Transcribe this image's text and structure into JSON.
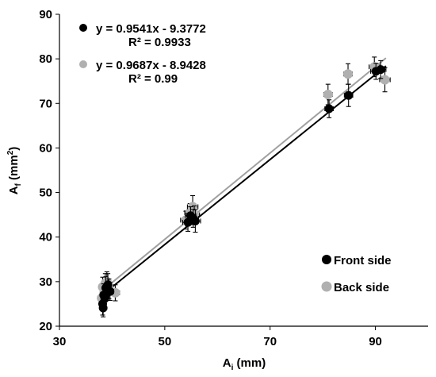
{
  "chart_data": {
    "type": "scatter",
    "xlabel": {
      "main": "A",
      "sub": "i",
      "rest": " (mm)"
    },
    "ylabel": {
      "main": "A",
      "sub": "f",
      "rest": " (mm",
      "sup": "2",
      "end": ")"
    },
    "xlim": [
      30,
      100
    ],
    "ylim": [
      20,
      90
    ],
    "xticks": [
      30,
      50,
      70,
      90
    ],
    "yticks": [
      20,
      30,
      40,
      50,
      60,
      70,
      80,
      90
    ],
    "legend_position": "bottom-right",
    "series": [
      {
        "name": "Front side",
        "color": "#000000",
        "equation": "y = 0.9541x - 9.3772",
        "r2": "R² = 0.9933",
        "slope": 0.9541,
        "intercept": -9.3772,
        "fit_range": [
          38,
          92
        ],
        "points": [
          {
            "x": 38.2,
            "y": 25.0,
            "xerr": 0.6,
            "yerr": 2.5
          },
          {
            "x": 38.4,
            "y": 27.0,
            "xerr": 0.6,
            "yerr": 2.5
          },
          {
            "x": 38.6,
            "y": 26.2,
            "xerr": 0.6,
            "yerr": 2.5
          },
          {
            "x": 38.8,
            "y": 28.6,
            "xerr": 0.6,
            "yerr": 2.5
          },
          {
            "x": 39.2,
            "y": 29.3,
            "xerr": 0.6,
            "yerr": 2.5
          },
          {
            "x": 38.3,
            "y": 24.1,
            "xerr": 0.6,
            "yerr": 2.0
          },
          {
            "x": 39.6,
            "y": 27.8,
            "xerr": 0.7,
            "yerr": 2.0
          },
          {
            "x": 54.4,
            "y": 43.3,
            "xerr": 1.0,
            "yerr": 2.0
          },
          {
            "x": 54.9,
            "y": 44.8,
            "xerr": 1.0,
            "yerr": 2.0
          },
          {
            "x": 55.4,
            "y": 44.2,
            "xerr": 1.0,
            "yerr": 2.0
          },
          {
            "x": 55.8,
            "y": 43.6,
            "xerr": 1.0,
            "yerr": 2.5
          },
          {
            "x": 81.2,
            "y": 68.8,
            "xerr": 0.8,
            "yerr": 2.0
          },
          {
            "x": 84.9,
            "y": 71.8,
            "xerr": 0.8,
            "yerr": 2.5
          },
          {
            "x": 90.1,
            "y": 77.2,
            "xerr": 1.0,
            "yerr": 1.8
          },
          {
            "x": 91.0,
            "y": 77.6,
            "xerr": 1.0,
            "yerr": 2.0
          }
        ]
      },
      {
        "name": "Back side",
        "color": "#b0b0b0",
        "equation": "y = 0.9687x - 8.9428",
        "r2": "R² = 0.99",
        "slope": 0.9687,
        "intercept": -8.9428,
        "fit_range": [
          38,
          92
        ],
        "points": [
          {
            "x": 38.0,
            "y": 26.3,
            "xerr": 0.6,
            "yerr": 2.2
          },
          {
            "x": 38.2,
            "y": 28.8,
            "xerr": 0.6,
            "yerr": 2.2
          },
          {
            "x": 38.5,
            "y": 27.6,
            "xerr": 0.6,
            "yerr": 2.2
          },
          {
            "x": 38.7,
            "y": 29.6,
            "xerr": 0.6,
            "yerr": 2.2
          },
          {
            "x": 39.0,
            "y": 30.0,
            "xerr": 0.6,
            "yerr": 2.2
          },
          {
            "x": 39.4,
            "y": 28.4,
            "xerr": 0.6,
            "yerr": 2.2
          },
          {
            "x": 40.6,
            "y": 27.5,
            "xerr": 0.8,
            "yerr": 1.8
          },
          {
            "x": 54.0,
            "y": 43.8,
            "xerr": 1.0,
            "yerr": 2.0
          },
          {
            "x": 54.8,
            "y": 45.5,
            "xerr": 1.0,
            "yerr": 2.0
          },
          {
            "x": 55.3,
            "y": 46.8,
            "xerr": 1.0,
            "yerr": 2.5
          },
          {
            "x": 55.6,
            "y": 45.0,
            "xerr": 1.0,
            "yerr": 2.0
          },
          {
            "x": 81.0,
            "y": 72.0,
            "xerr": 0.8,
            "yerr": 2.3
          },
          {
            "x": 84.8,
            "y": 76.6,
            "xerr": 0.8,
            "yerr": 2.3
          },
          {
            "x": 89.8,
            "y": 78.2,
            "xerr": 1.0,
            "yerr": 2.2
          },
          {
            "x": 91.8,
            "y": 75.3,
            "xerr": 1.0,
            "yerr": 2.7
          }
        ]
      }
    ]
  }
}
